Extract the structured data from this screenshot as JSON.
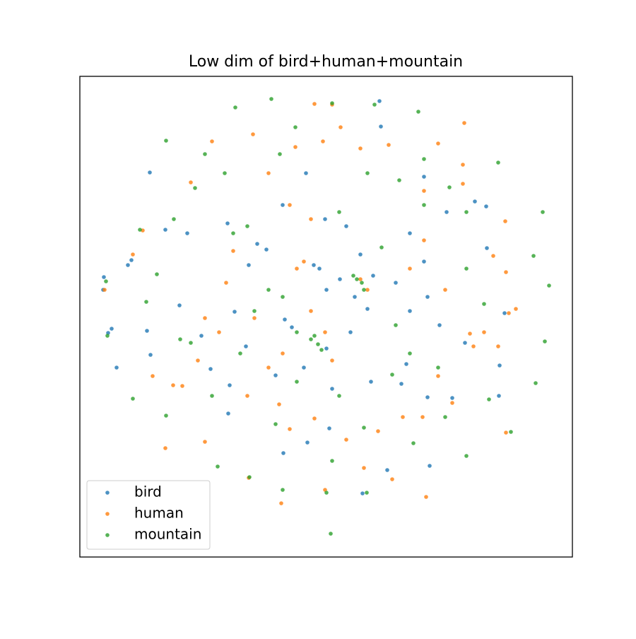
{
  "chart_data": {
    "type": "scatter",
    "title": "Low dim of bird+human+mountain",
    "xlim": [
      0,
      697
    ],
    "ylim": [
      0,
      680
    ],
    "legend": "lower left",
    "alpha": 0.8,
    "series": [
      {
        "name": "bird",
        "color": "#1f77b4",
        "x": [
          99,
          34,
          33,
          68,
          73,
          45,
          40,
          52,
          95,
          100,
          141,
          152,
          121,
          209,
          210,
          288,
          320,
          424,
          426,
          519,
          559,
          575,
          576,
          601,
          594,
          593,
          545,
          527,
          495,
          492,
          455,
          435,
          400,
          353,
          322,
          290,
          300,
          349,
          368,
          389,
          397,
          407,
          415,
          383,
          349,
          317,
          277,
          331,
          339,
          447,
          467,
          492,
          509,
          235,
          219,
          185,
          172,
          264,
          251,
          212,
          287,
          347,
          377,
          467,
          487,
          462,
          412,
          357,
          239,
          487
        ],
        "values": [
          544,
          396,
          378,
          413,
          420,
          323,
          317,
          268,
          320,
          286,
          356,
          458,
          463,
          472,
          203,
          147,
          543,
          645,
          609,
          488,
          503,
          496,
          437,
          345,
          271,
          228,
          303,
          225,
          129,
          226,
          245,
          123,
          90,
          182,
          162,
          336,
          325,
          378,
          393,
          368,
          428,
          351,
          398,
          318,
          295,
          268,
          257,
          413,
          408,
          388,
          348,
          368,
          328,
          298,
          347,
          266,
          313,
          435,
          443,
          243,
          498,
          478,
          468,
          458,
          418,
          273,
          248,
          238,
          413,
          538
        ]
      },
      {
        "name": "human",
        "color": "#ff7f0e",
        "x": [
          544,
          507,
          542,
          585,
          602,
          617,
          607,
          572,
          552,
          603,
          603,
          490,
          442,
          402,
          347,
          285,
          239,
          177,
          121,
          103,
          132,
          145,
          89,
          75,
          35,
          187,
          245,
          305,
          344,
          369,
          437,
          357,
          332,
          267,
          157,
          217,
          207,
          177,
          197,
          167,
          237,
          282,
          297,
          332,
          377,
          422,
          457,
          485,
          507,
          557,
          517,
          467,
          487,
          407,
          397,
          317,
          307,
          327,
          347,
          357,
          287,
          267,
          247,
          327,
          297,
          397,
          487,
          542,
          592,
          527
        ],
        "values": [
          614,
          585,
          555,
          426,
          475,
          351,
          345,
          318,
          316,
          403,
          176,
          85,
          110,
          126,
          95,
          76,
          112,
          163,
          154,
          256,
          243,
          242,
          462,
          428,
          378,
          588,
          598,
          580,
          588,
          608,
          583,
          640,
          641,
          543,
          530,
          433,
          388,
          338,
          318,
          278,
          228,
          216,
          181,
          196,
          166,
          178,
          198,
          198,
          256,
          298,
          378,
          408,
          448,
          378,
          393,
          418,
          408,
          348,
          318,
          278,
          288,
          268,
          338,
          478,
          498,
          578,
          518,
          528,
          298,
          218
        ]
      },
      {
        "name": "mountain",
        "color": "#2ca02c",
        "x": [
          271,
          357,
          417,
          479,
          220,
          122,
          283,
          305,
          177,
          205,
          163,
          85,
          133,
          109,
          94,
          37,
          39,
          75,
          122,
          195,
          240,
          287,
          355,
          357,
          349,
          406,
          472,
          547,
          610,
          579,
          645,
          658,
          664,
          655,
          642,
          592,
          523,
          487,
          452,
          407,
          487,
          392,
          399,
          402,
          387,
          327,
          337,
          332,
          342,
          307,
          287,
          267,
          247,
          227,
          187,
          217,
          237,
          367,
          427,
          447,
          467,
          507,
          547,
          572,
          367,
          307,
          277,
          402,
          442,
          517,
          547,
          157,
          142
        ],
        "values": [
          648,
          642,
          640,
          630,
          636,
          589,
          570,
          608,
          570,
          543,
          522,
          463,
          478,
          400,
          361,
          390,
          313,
          224,
          200,
          128,
          113,
          95,
          33,
          136,
          91,
          91,
          161,
          143,
          177,
          223,
          246,
          305,
          384,
          488,
          426,
          558,
          523,
          563,
          533,
          543,
          498,
          393,
          388,
          378,
          398,
          308,
          301,
          313,
          293,
          318,
          368,
          378,
          348,
          288,
          228,
          458,
          468,
          488,
          438,
          328,
          288,
          268,
          408,
          358,
          228,
          248,
          188,
          183,
          258,
          198,
          488,
          303,
          308
        ]
      }
    ]
  }
}
